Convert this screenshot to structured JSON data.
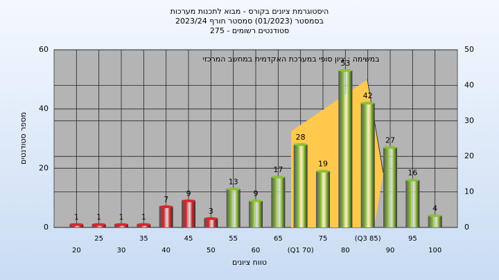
{
  "chart_data": {
    "type": "bar",
    "title": "היסטוגרמת ציונים בקורס - מבוא לתכנות מערכות",
    "subtitle": "בסמסטר (01/2023) סמסטר חורף 2023/24",
    "subtitle2": "סטודנטים רשומים - 275",
    "annotation": "במשימה : ציון סופי במערכת האקדמית במחשב המרכזי",
    "xlabel": "טווח ציונים",
    "ylabel": "מספר סטודנטים",
    "categories": [
      "20",
      "25",
      "30",
      "35",
      "40",
      "45",
      "50",
      "55",
      "60",
      "65",
      "(Q1 70)",
      "75",
      "80",
      "(Q3 85)",
      "90",
      "95",
      "100"
    ],
    "values": [
      1,
      1,
      1,
      1,
      7,
      9,
      3,
      13,
      9,
      17,
      28,
      19,
      53,
      42,
      27,
      16,
      4
    ],
    "colors": [
      "#d62830",
      "#d62830",
      "#d62830",
      "#d62830",
      "#d62830",
      "#d62830",
      "#d62830",
      "#8cbf3c",
      "#8cbf3c",
      "#8cbf3c",
      "#8cbf3c",
      "#8cbf3c",
      "#8cbf3c",
      "#8cbf3c",
      "#8cbf3c",
      "#8cbf3c",
      "#8cbf3c"
    ],
    "ylim": [
      0,
      60
    ],
    "yticks": [
      0,
      20,
      40,
      60
    ],
    "y2lim": [
      0,
      50
    ],
    "y2ticks": [
      0,
      10,
      20,
      30,
      40,
      50
    ],
    "grid": true
  }
}
